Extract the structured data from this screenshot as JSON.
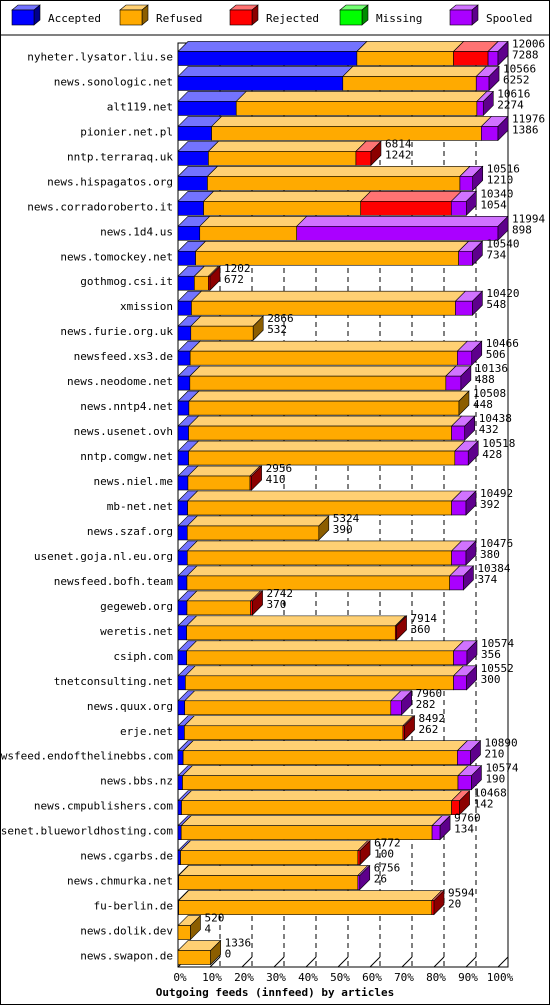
{
  "chart_data": {
    "type": "bar",
    "orientation": "horizontal",
    "stacked": true,
    "title": "Outgoing feeds (innfeed) by articles",
    "legend": [
      {
        "name": "Accepted",
        "color": "#0000ff"
      },
      {
        "name": "Refused",
        "color": "#ffaa00"
      },
      {
        "name": "Rejected",
        "color": "#ff0000"
      },
      {
        "name": "Missing",
        "color": "#00ff00"
      },
      {
        "name": "Spooled",
        "color": "#aa00ff"
      }
    ],
    "legend_position": "top",
    "x_ticks": [
      "0%",
      "10%",
      "20%",
      "30%",
      "40%",
      "50%",
      "60%",
      "70%",
      "80%",
      "90%",
      "100%"
    ],
    "xlim": [
      0,
      100
    ],
    "grid": true,
    "rows": [
      {
        "label": "nyheter.lysator.liu.se",
        "total": "12006",
        "accepted": "7288",
        "segments": [
          55.9,
          30.2,
          10.8,
          0,
          3.1
        ]
      },
      {
        "label": "news.sonologic.net",
        "total": "10566",
        "accepted": "6252",
        "segments": [
          51.5,
          41.7,
          0,
          0,
          4.0
        ]
      },
      {
        "label": "alt119.net",
        "total": "10616",
        "accepted": "2274",
        "segments": [
          18.2,
          75.2,
          0,
          0,
          2.0
        ]
      },
      {
        "label": "pionier.net.pl",
        "total": "11976",
        "accepted": "1386",
        "segments": [
          10.5,
          84.3,
          0,
          0,
          5.2
        ]
      },
      {
        "label": "nntp.terraraq.uk",
        "total": "6814",
        "accepted": "1242",
        "segments": [
          9.5,
          46.1,
          4.7,
          0,
          0
        ]
      },
      {
        "label": "news.hispagatos.org",
        "total": "10516",
        "accepted": "1210",
        "segments": [
          9.2,
          78.9,
          0,
          0,
          4.0
        ]
      },
      {
        "label": "news.corradoroberto.it",
        "total": "10340",
        "accepted": "1054",
        "segments": [
          8.0,
          49.1,
          28.3,
          0,
          4.7
        ]
      },
      {
        "label": "news.1d4.us",
        "total": "11994",
        "accepted": "898",
        "segments": [
          6.8,
          30.3,
          0,
          0,
          62.9
        ]
      },
      {
        "label": "news.tomockey.net",
        "total": "10540",
        "accepted": "734",
        "segments": [
          5.5,
          82.2,
          0,
          0,
          4.3
        ]
      },
      {
        "label": "gothmog.csi.it",
        "total": "1202",
        "accepted": "672",
        "segments": [
          5.1,
          4.4,
          0.5,
          0,
          0
        ]
      },
      {
        "label": "xmission",
        "total": "10420",
        "accepted": "548",
        "segments": [
          4.2,
          82.5,
          0,
          0,
          5.3
        ]
      },
      {
        "label": "news.furie.org.uk",
        "total": "2866",
        "accepted": "532",
        "segments": [
          4.0,
          19.5,
          0,
          0,
          0
        ]
      },
      {
        "label": "newsfeed.xs3.de",
        "total": "10466",
        "accepted": "506",
        "segments": [
          3.8,
          83.5,
          0,
          0,
          4.5
        ]
      },
      {
        "label": "news.neodome.net",
        "total": "10136",
        "accepted": "488",
        "segments": [
          3.7,
          80.0,
          0,
          0,
          4.7
        ]
      },
      {
        "label": "news.nntp4.net",
        "total": "10508",
        "accepted": "448",
        "segments": [
          3.4,
          84.4,
          0,
          0,
          0
        ]
      },
      {
        "label": "news.usenet.ovh",
        "total": "10438",
        "accepted": "432",
        "segments": [
          3.3,
          82.2,
          0,
          0,
          4.1
        ]
      },
      {
        "label": "nntp.comgw.net",
        "total": "10518",
        "accepted": "428",
        "segments": [
          3.3,
          83.2,
          0,
          0,
          4.2
        ]
      },
      {
        "label": "news.niel.me",
        "total": "2956",
        "accepted": "410",
        "segments": [
          3.1,
          19.4,
          0.5,
          0,
          0
        ]
      },
      {
        "label": "mb-net.net",
        "total": "10492",
        "accepted": "392",
        "segments": [
          3.0,
          82.5,
          0,
          0,
          4.5
        ]
      },
      {
        "label": "news.szaf.org",
        "total": "5324",
        "accepted": "390",
        "segments": [
          2.9,
          41.1,
          0,
          0,
          0
        ]
      },
      {
        "label": "usenet.goja.nl.eu.org",
        "total": "10476",
        "accepted": "380",
        "segments": [
          2.9,
          82.6,
          0,
          0,
          4.5
        ]
      },
      {
        "label": "newsfeed.bofh.team",
        "total": "10384",
        "accepted": "374",
        "segments": [
          2.8,
          82.1,
          0,
          0,
          4.3
        ]
      },
      {
        "label": "gegeweb.org",
        "total": "2742",
        "accepted": "370",
        "segments": [
          2.8,
          19.9,
          0.6,
          0,
          0
        ]
      },
      {
        "label": "weretis.net",
        "total": "7914",
        "accepted": "360",
        "segments": [
          2.7,
          65.2,
          0.4,
          0,
          0
        ]
      },
      {
        "label": "csiph.com",
        "total": "10574",
        "accepted": "356",
        "segments": [
          2.7,
          83.4,
          0,
          0,
          4.2
        ]
      },
      {
        "label": "tnetconsulting.net",
        "total": "10552",
        "accepted": "300",
        "segments": [
          2.3,
          83.8,
          0,
          0,
          4.1
        ]
      },
      {
        "label": "news.quux.org",
        "total": "7960",
        "accepted": "282",
        "segments": [
          2.1,
          64.4,
          0,
          0,
          3.4
        ]
      },
      {
        "label": "erje.net",
        "total": "8492",
        "accepted": "262",
        "segments": [
          2.0,
          68.3,
          0.5,
          0,
          0
        ]
      },
      {
        "label": "newsfeed.endofthelinebbs.com",
        "total": "10890",
        "accepted": "210",
        "segments": [
          1.6,
          85.7,
          0,
          0,
          4.1
        ]
      },
      {
        "label": "news.bbs.nz",
        "total": "10574",
        "accepted": "190",
        "segments": [
          1.4,
          86.1,
          0,
          0,
          4.2
        ]
      },
      {
        "label": "news.cmpublishers.com",
        "total": "10468",
        "accepted": "142",
        "segments": [
          1.1,
          84.4,
          2.5,
          0,
          0
        ]
      },
      {
        "label": "usenet.blueworldhosting.com",
        "total": "9760",
        "accepted": "134",
        "segments": [
          1.0,
          78.4,
          0,
          0,
          2.5
        ]
      },
      {
        "label": "news.cgarbs.de",
        "total": "6772",
        "accepted": "100",
        "segments": [
          0.8,
          55.4,
          0.7,
          0,
          0
        ]
      },
      {
        "label": "news.chmurka.net",
        "total": "6756",
        "accepted": "26",
        "segments": [
          0.2,
          56.0,
          0,
          0,
          0.6
        ]
      },
      {
        "label": "fu-berlin.de",
        "total": "9594",
        "accepted": "20",
        "segments": [
          0.2,
          79.1,
          0.7,
          0,
          0
        ]
      },
      {
        "label": "news.dolik.dev",
        "total": "520",
        "accepted": "4",
        "segments": [
          0.0,
          3.9,
          0,
          0,
          0
        ]
      },
      {
        "label": "news.swapon.de",
        "total": "1336",
        "accepted": "0",
        "segments": [
          0.0,
          10.2,
          0,
          0,
          0
        ]
      }
    ]
  }
}
